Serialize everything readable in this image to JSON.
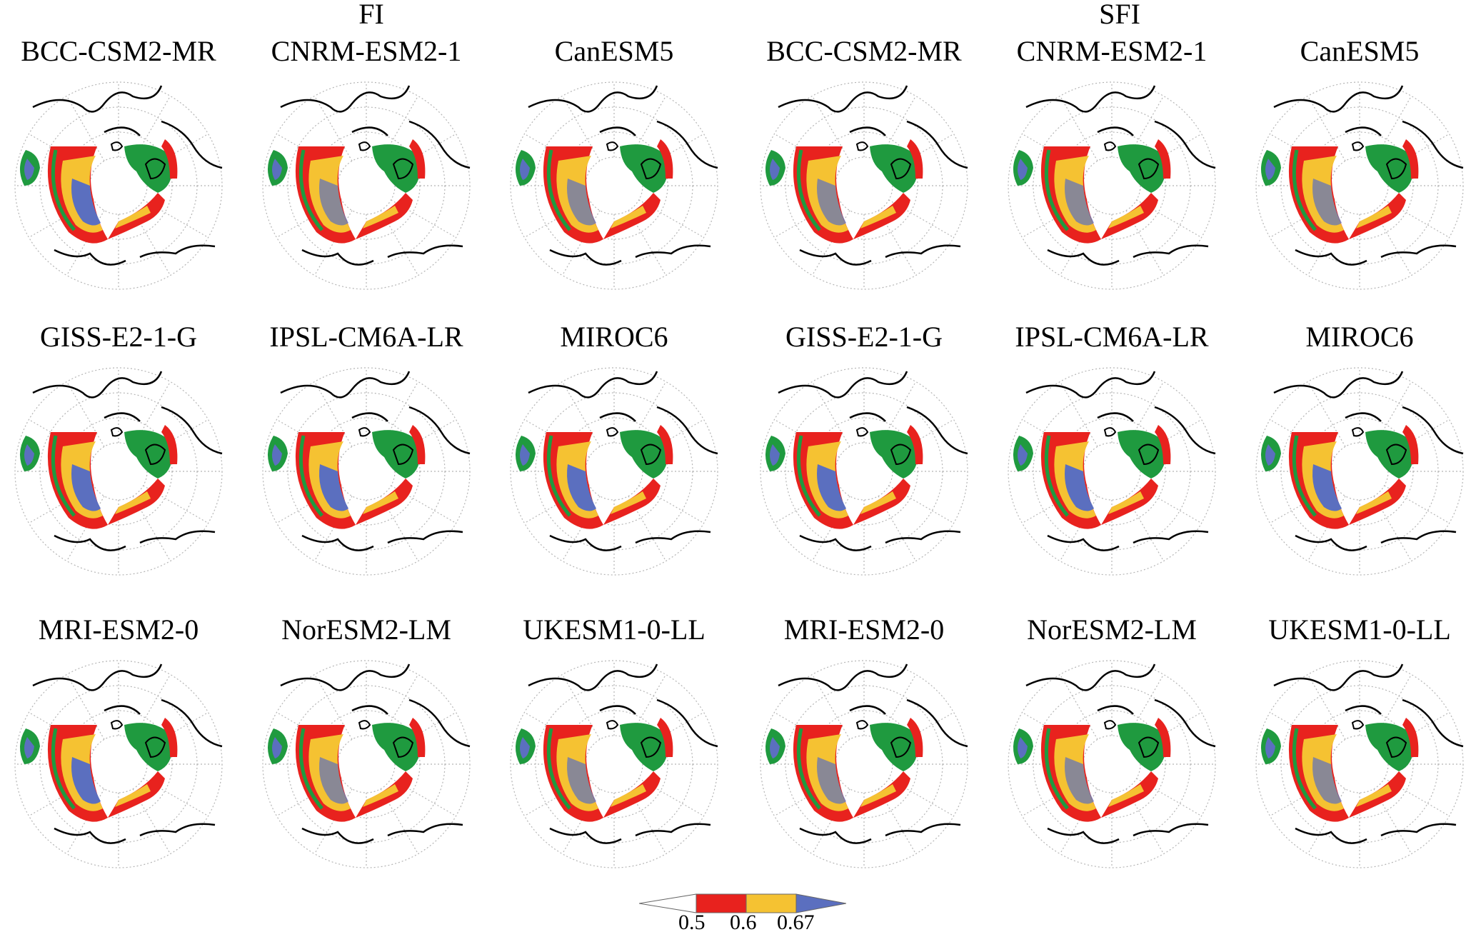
{
  "groups": [
    {
      "label": "FI"
    },
    {
      "label": "SFI"
    }
  ],
  "panels": [
    {
      "title": "BCC-CSM2-MR"
    },
    {
      "title": "CNRM-ESM2-1"
    },
    {
      "title": "CanESM5"
    },
    {
      "title": "BCC-CSM2-MR"
    },
    {
      "title": "CNRM-ESM2-1"
    },
    {
      "title": "CanESM5"
    },
    {
      "title": "GISS-E2-1-G"
    },
    {
      "title": "IPSL-CM6A-LR"
    },
    {
      "title": "MIROC6"
    },
    {
      "title": "GISS-E2-1-G"
    },
    {
      "title": "IPSL-CM6A-LR"
    },
    {
      "title": "MIROC6"
    },
    {
      "title": "MRI-ESM2-0"
    },
    {
      "title": "NorESM2-LM"
    },
    {
      "title": "UKESM1-0-LL"
    },
    {
      "title": "MRI-ESM2-0"
    },
    {
      "title": "NorESM2-LM"
    },
    {
      "title": "UKESM1-0-LL"
    }
  ],
  "legend": {
    "ticks": [
      "0.5",
      "0.6",
      "0.67"
    ],
    "bins": [
      {
        "range": "below 0.5",
        "color": "#ffffff"
      },
      {
        "range": "0.5-0.6",
        "color": "#e8221e"
      },
      {
        "range": "0.6-0.67",
        "color": "#f5c232"
      },
      {
        "range": "above 0.67",
        "color": "#5b6fbf"
      }
    ],
    "overlay_color": "#1f9a3f"
  }
}
